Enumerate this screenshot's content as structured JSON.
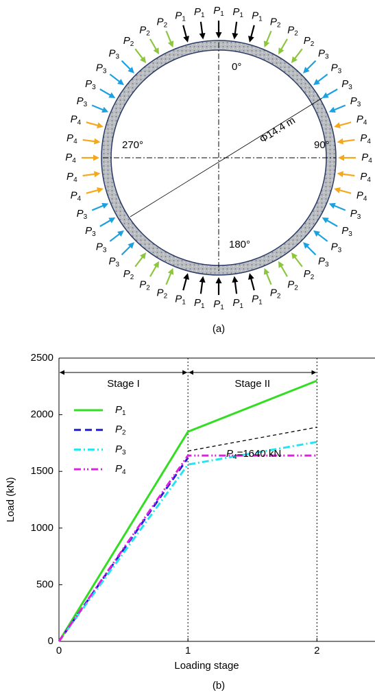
{
  "diagram": {
    "arrows": [
      "P1",
      "P1",
      "P1",
      "P2",
      "P2",
      "P2",
      "P3",
      "P3",
      "P3",
      "P3",
      "P4",
      "P4",
      "P4",
      "P4",
      "P4",
      "P3",
      "P3",
      "P3",
      "P3",
      "P2",
      "P2",
      "P2",
      "P1",
      "P1",
      "P1",
      "P1",
      "P1",
      "P2",
      "P2",
      "P2",
      "P3",
      "P3",
      "P3",
      "P3",
      "P4",
      "P4",
      "P4",
      "P4",
      "P4",
      "P3",
      "P3",
      "P3",
      "P3",
      "P2",
      "P2",
      "P2",
      "P1",
      "P1"
    ],
    "angle_labels": [
      "0°",
      "90°",
      "180°",
      "270°"
    ],
    "diameter": "Φ14.4 m",
    "caption": "(a)"
  },
  "chart_data": {
    "type": "line",
    "x": [
      0,
      1,
      2
    ],
    "series": [
      {
        "name": "P1",
        "color": "#33dd22",
        "dash": "",
        "values": [
          0,
          1850,
          2300
        ]
      },
      {
        "name": "P2",
        "color": "#1a1ae0",
        "dash": "10,6",
        "values": [
          0,
          1620,
          null
        ]
      },
      {
        "name": "P3",
        "color": "#22e5f0",
        "dash": "10,4,2,4",
        "values": [
          0,
          1560,
          1760
        ]
      },
      {
        "name": "P4",
        "color": "#e020e0",
        "dash": "10,4,2,3,2,4",
        "values": [
          0,
          1640,
          1640
        ]
      },
      {
        "color": "#000000",
        "dash": "5,4",
        "values": [
          null,
          1680,
          1890
        ]
      }
    ],
    "xlim": [
      0,
      2.45
    ],
    "ylim": [
      0,
      2500
    ],
    "xticks": [
      0,
      1,
      2
    ],
    "yticks": [
      0,
      500,
      1000,
      1500,
      2000,
      2500
    ],
    "xlabel": "Loading stage",
    "ylabel": "Load (kN)",
    "stages": [
      "Stage I",
      "Stage II"
    ],
    "annotation": "P4=1640 kN",
    "caption": "(b)"
  }
}
